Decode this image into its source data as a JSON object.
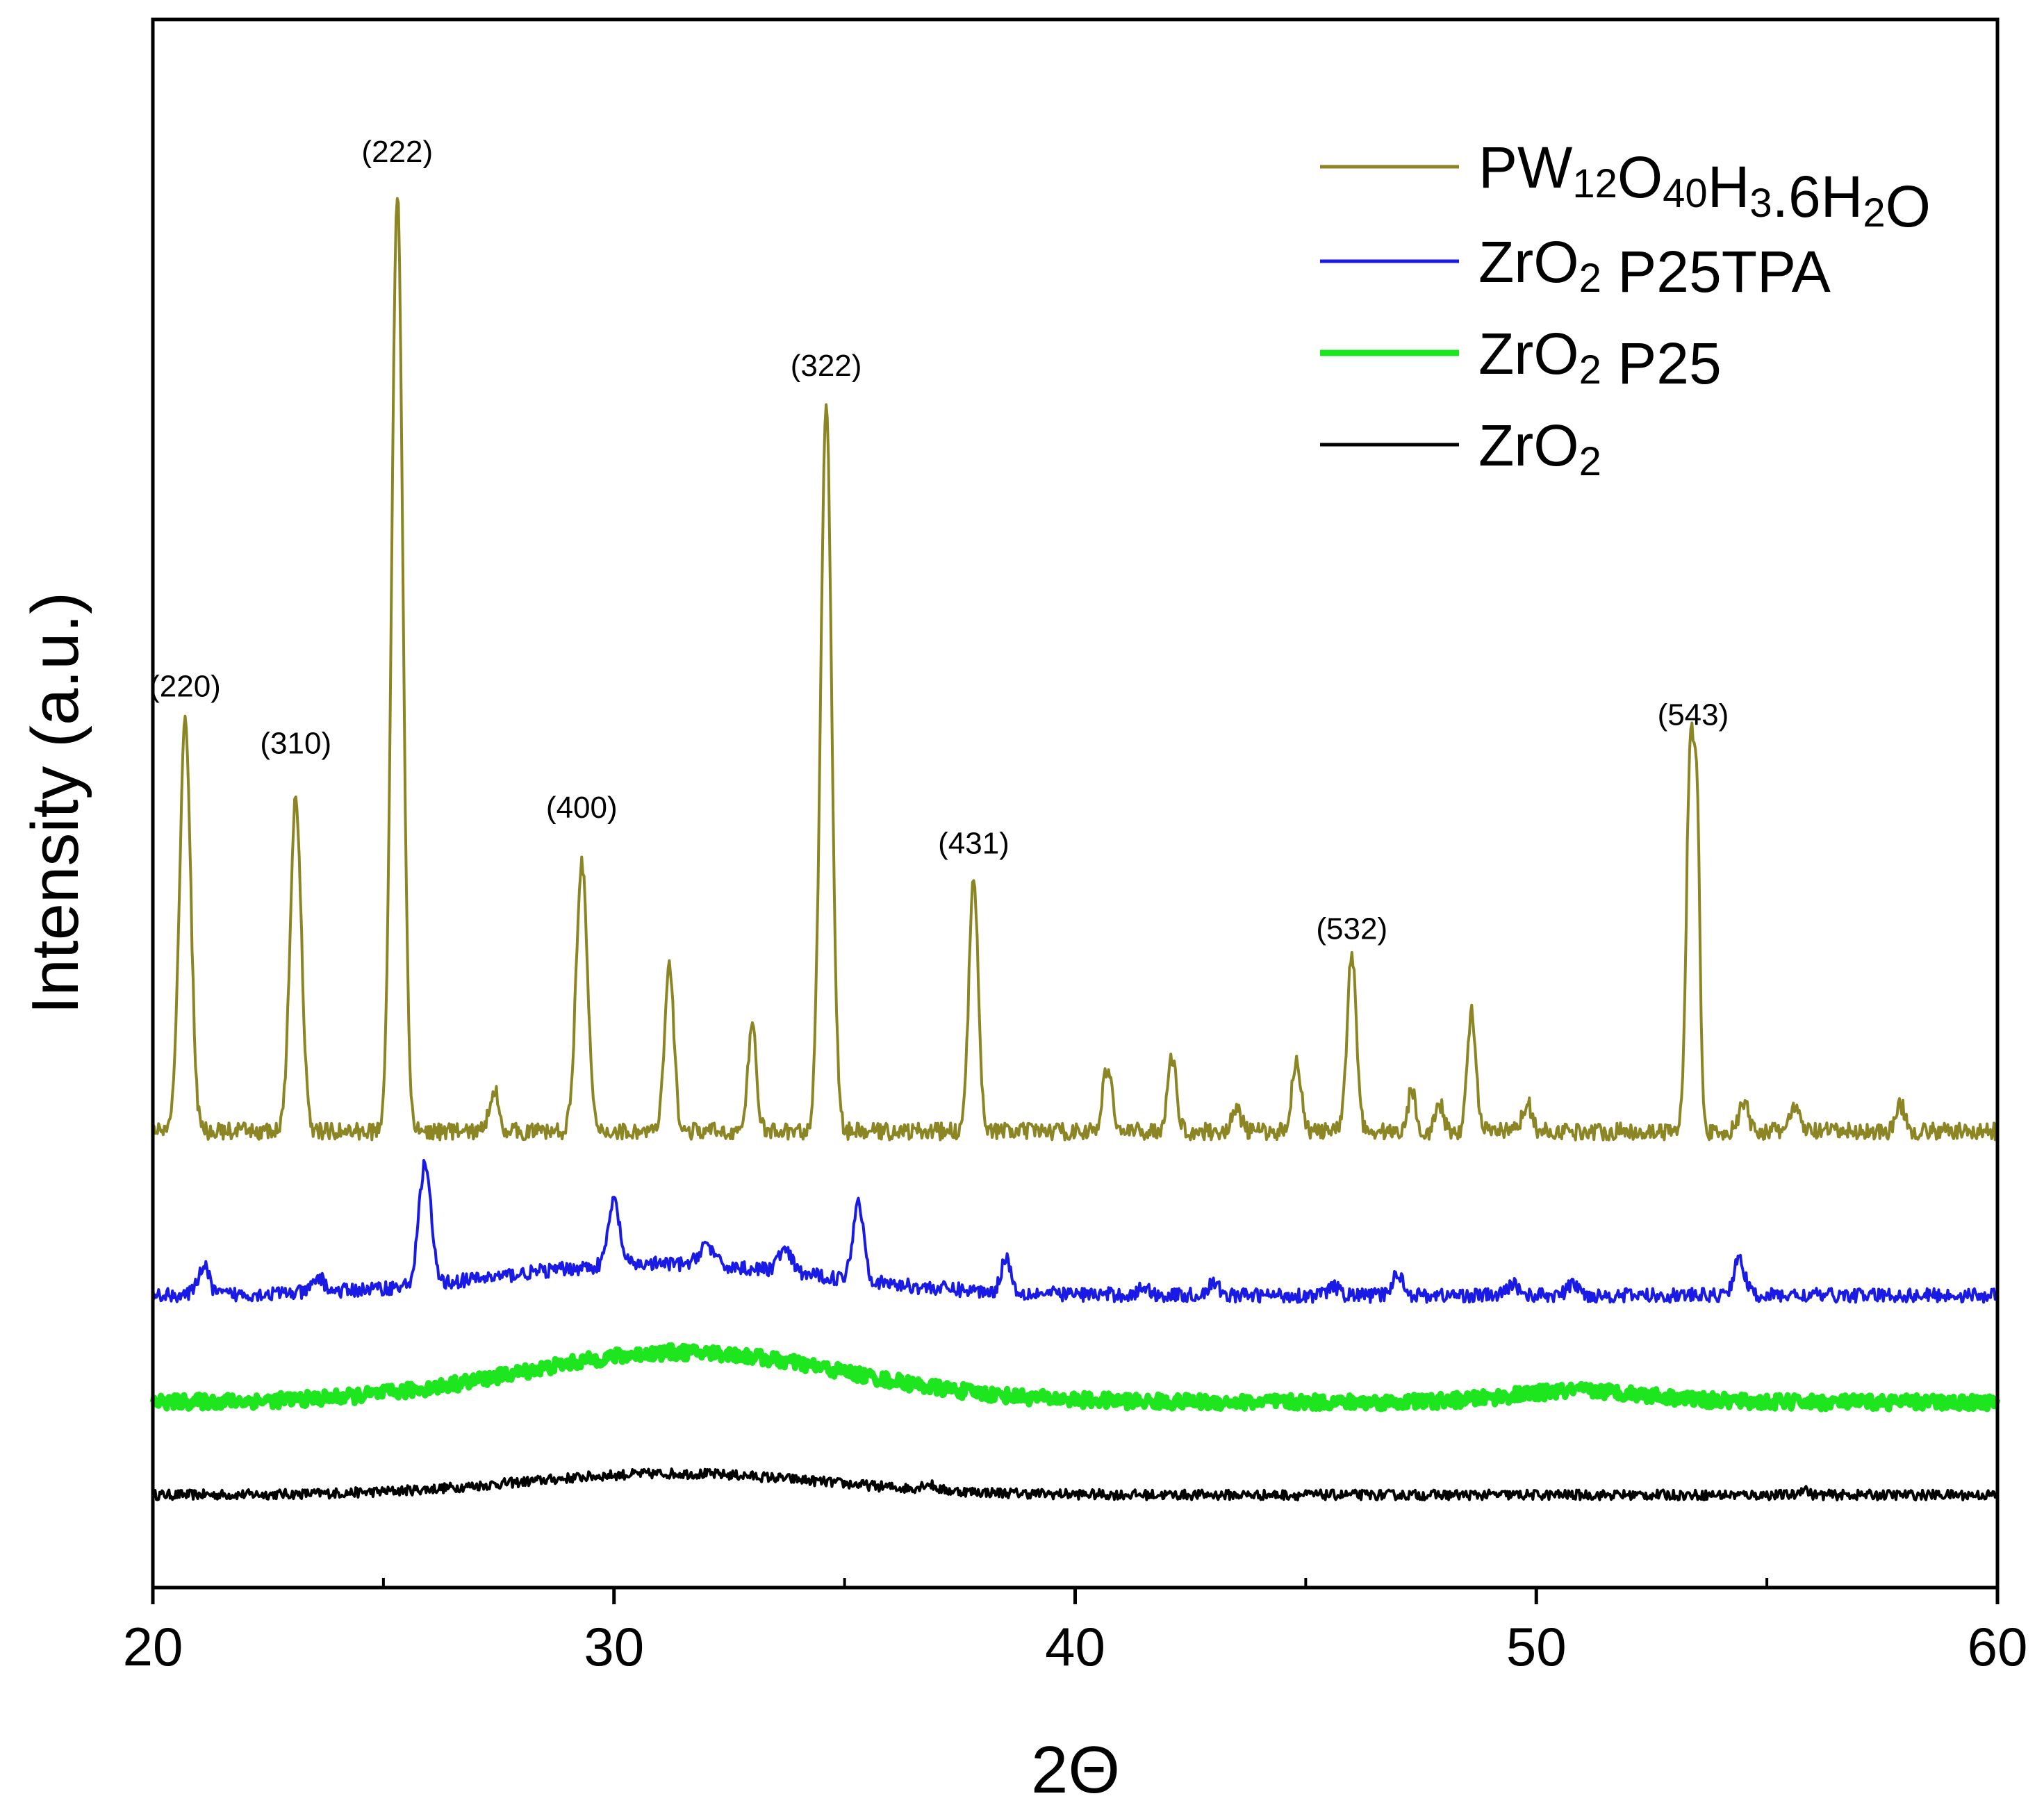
{
  "chart_data": {
    "type": "line",
    "title": "",
    "xlabel": "2Θ",
    "ylabel": "Intensity (a.u.)",
    "xlim": [
      20,
      60
    ],
    "ylim": [
      0,
      11
    ],
    "xticks": [
      20,
      30,
      40,
      50,
      60
    ],
    "xtick_labels": [
      "20",
      "30",
      "40",
      "50",
      "60"
    ],
    "minor_xticks": [
      25,
      35,
      45,
      55
    ],
    "legend_position": "top-right",
    "series": [
      {
        "name": "PW12O40H3.6H2O",
        "legend": [
          {
            "t": "PW"
          },
          {
            "t": "12",
            "sub": true
          },
          {
            "t": "O"
          },
          {
            "t": "40",
            "sub": true
          },
          {
            "t": "H"
          },
          {
            "t": "3",
            "sub": true
          },
          {
            "t": ".6H"
          },
          {
            "t": "2",
            "sub": true
          },
          {
            "t": "O"
          }
        ],
        "color": "#8b8523",
        "baseline": 3.2,
        "noise": 0.06,
        "hump": null,
        "peaks": [
          [
            20.7,
            2.9,
            0.12
          ],
          [
            23.1,
            2.35,
            0.12
          ],
          [
            25.3,
            6.6,
            0.12
          ],
          [
            27.4,
            0.3,
            0.1
          ],
          [
            29.3,
            1.9,
            0.12
          ],
          [
            31.2,
            1.15,
            0.1
          ],
          [
            33.0,
            0.75,
            0.09
          ],
          [
            34.6,
            5.1,
            0.12
          ],
          [
            37.8,
            1.8,
            0.1
          ],
          [
            40.7,
            0.45,
            0.1
          ],
          [
            42.1,
            0.5,
            0.1
          ],
          [
            43.5,
            0.15,
            0.1
          ],
          [
            44.8,
            0.5,
            0.1
          ],
          [
            46.0,
            1.25,
            0.1
          ],
          [
            47.3,
            0.3,
            0.08
          ],
          [
            47.9,
            0.2,
            0.08
          ],
          [
            48.6,
            0.85,
            0.09
          ],
          [
            49.8,
            0.2,
            0.1
          ],
          [
            53.35,
            2.8,
            0.09
          ],
          [
            53.5,
            1.6,
            0.06
          ],
          [
            54.5,
            0.2,
            0.1
          ],
          [
            55.6,
            0.15,
            0.12
          ],
          [
            57.9,
            0.18,
            0.1
          ]
        ]
      },
      {
        "name": "ZrO2 P25TPA",
        "legend": [
          {
            "t": "ZrO"
          },
          {
            "t": "2",
            "sub": true
          },
          {
            "t": " P25TPA"
          }
        ],
        "color": "#1a1ae6",
        "baseline": 2.05,
        "noise": 0.05,
        "hump": [
          31.0,
          3.5,
          0.22
        ],
        "peaks": [
          [
            21.1,
            0.2,
            0.12
          ],
          [
            23.6,
            0.1,
            0.12
          ],
          [
            25.9,
            0.85,
            0.13
          ],
          [
            30.0,
            0.45,
            0.12
          ],
          [
            32.0,
            0.15,
            0.15
          ],
          [
            33.7,
            0.15,
            0.15
          ],
          [
            35.3,
            0.55,
            0.12
          ],
          [
            38.5,
            0.25,
            0.1
          ],
          [
            41.5,
            0.06,
            0.1
          ],
          [
            43.0,
            0.08,
            0.12
          ],
          [
            45.6,
            0.06,
            0.12
          ],
          [
            47.0,
            0.15,
            0.12
          ],
          [
            49.5,
            0.08,
            0.12
          ],
          [
            50.8,
            0.08,
            0.12
          ],
          [
            54.4,
            0.25,
            0.12
          ]
        ]
      },
      {
        "name": "ZrO2 P25",
        "legend": [
          {
            "t": "ZrO"
          },
          {
            "t": "2",
            "sub": true
          },
          {
            "t": " P25"
          }
        ],
        "color": "#1ee61e",
        "baseline": 1.3,
        "noise": 0.05,
        "hump": [
          31.5,
          3.5,
          0.35
        ],
        "peaks": [
          [
            51.0,
            0.08,
            1.5
          ]
        ]
      },
      {
        "name": "ZrO2",
        "legend": [
          {
            "t": "ZrO"
          },
          {
            "t": "2",
            "sub": true
          }
        ],
        "color": "#000000",
        "baseline": 0.65,
        "noise": 0.035,
        "hump": [
          31.3,
          3.3,
          0.15
        ],
        "peaks": [
          [
            36.8,
            0.04,
            0.15
          ],
          [
            55.8,
            0.05,
            0.08
          ]
        ]
      }
    ],
    "peak_labels": [
      {
        "label": "(220)",
        "x": 20.7,
        "y": 6.25
      },
      {
        "label": "(310)",
        "x": 23.1,
        "y": 5.85
      },
      {
        "label": "(222)",
        "x": 25.3,
        "y": 10.0
      },
      {
        "label": "(400)",
        "x": 29.3,
        "y": 5.4
      },
      {
        "label": "(322)",
        "x": 34.6,
        "y": 8.5
      },
      {
        "label": "(431)",
        "x": 37.8,
        "y": 5.15
      },
      {
        "label": "(532)",
        "x": 46.0,
        "y": 4.55
      },
      {
        "label": "(543)",
        "x": 53.4,
        "y": 6.05
      }
    ]
  }
}
